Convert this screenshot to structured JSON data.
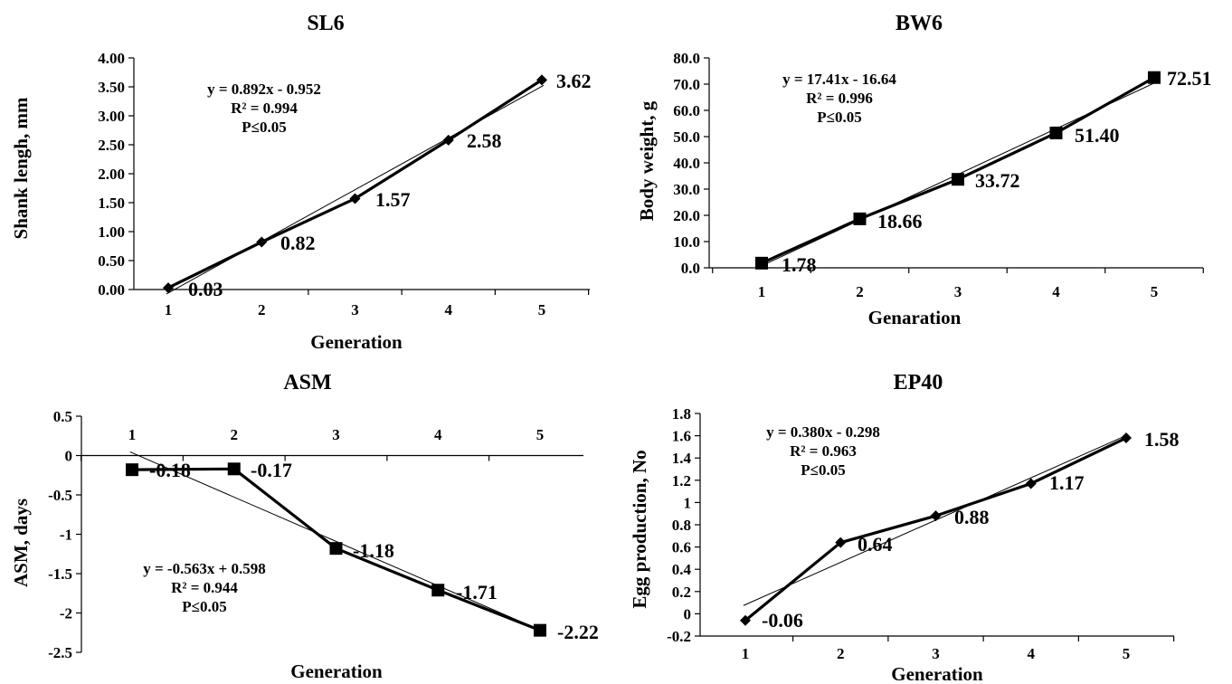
{
  "chart_data": [
    {
      "id": "sl6",
      "type": "line",
      "title": "SL6",
      "xlabel": "Generation",
      "ylabel": "Shank lengh, mm",
      "categories": [
        "1",
        "2",
        "3",
        "4",
        "5"
      ],
      "x": [
        1,
        2,
        3,
        4,
        5
      ],
      "ylim": [
        0,
        4
      ],
      "yticks": [
        "0.00",
        "0.50",
        "1.00",
        "1.50",
        "2.00",
        "2.50",
        "3.00",
        "3.50",
        "4.00"
      ],
      "series": [
        {
          "values": [
            0.03,
            0.82,
            1.57,
            2.58,
            3.62
          ],
          "marker": "diamond"
        }
      ],
      "data_labels": [
        "0.03",
        "0.82",
        "1.57",
        "2.58",
        "3.62"
      ],
      "trendline": {
        "slope": 0.892,
        "intercept": -0.952
      },
      "annotation": [
        "y = 0.892x - 0.952",
        "R² = 0.994",
        "P≤0.05"
      ]
    },
    {
      "id": "bw6",
      "type": "line",
      "title": "BW6",
      "xlabel": "Genaration",
      "ylabel": "Body weight, g",
      "categories": [
        "1",
        "2",
        "3",
        "4",
        "5"
      ],
      "x": [
        1,
        2,
        3,
        4,
        5
      ],
      "ylim": [
        0,
        80
      ],
      "yticks": [
        "0.0",
        "10.0",
        "20.0",
        "30.0",
        "40.0",
        "50.0",
        "60.0",
        "70.0",
        "80.0"
      ],
      "series": [
        {
          "values": [
            1.78,
            18.66,
            33.72,
            51.4,
            72.51
          ],
          "marker": "square"
        }
      ],
      "data_labels": [
        "1.78",
        "18.66",
        "33.72",
        "51.40",
        "72.51"
      ],
      "trendline": {
        "slope": 17.41,
        "intercept": -16.64
      },
      "annotation": [
        "y = 17.41x - 16.64",
        "R² = 0.996",
        "P≤0.05"
      ]
    },
    {
      "id": "asm",
      "type": "line",
      "title": "ASM",
      "xlabel": "Generation",
      "ylabel": "ASM, days",
      "categories": [
        "1",
        "2",
        "3",
        "4",
        "5"
      ],
      "x": [
        1,
        2,
        3,
        4,
        5
      ],
      "ylim": [
        -2.5,
        0.5
      ],
      "yticks": [
        "-2.5",
        "-2",
        "-1.5",
        "-1",
        "-0.5",
        "0",
        "0.5"
      ],
      "series": [
        {
          "values": [
            -0.18,
            -0.17,
            -1.18,
            -1.71,
            -2.22
          ],
          "marker": "square"
        }
      ],
      "data_labels": [
        "-0.18",
        "-0.17",
        "-1.18",
        "-1.71",
        "-2.22"
      ],
      "trendline": {
        "slope": -0.563,
        "intercept": 0.598
      },
      "annotation": [
        "y = -0.563x + 0.598",
        "R² = 0.944",
        "P≤0.05"
      ]
    },
    {
      "id": "ep40",
      "type": "line",
      "title": "EP40",
      "xlabel": "Generation",
      "ylabel": "Egg  production, No",
      "categories": [
        "1",
        "2",
        "3",
        "4",
        "5"
      ],
      "x": [
        1,
        2,
        3,
        4,
        5
      ],
      "ylim": [
        -0.2,
        1.8
      ],
      "yticks": [
        "-0.2",
        "0",
        "0.2",
        "0.4",
        "0.6",
        "0.8",
        "1",
        "1.2",
        "1.4",
        "1.6",
        "1.8"
      ],
      "series": [
        {
          "values": [
            -0.06,
            0.64,
            0.88,
            1.17,
            1.58
          ],
          "marker": "diamond"
        }
      ],
      "data_labels": [
        "-0.06",
        "0.64",
        "0.88",
        "1.17",
        "1.58"
      ],
      "trendline": {
        "slope": 0.38,
        "intercept": -0.298
      },
      "annotation": [
        "y = 0.380x - 0.298",
        "R² = 0.963",
        "P≤0.05"
      ]
    }
  ]
}
